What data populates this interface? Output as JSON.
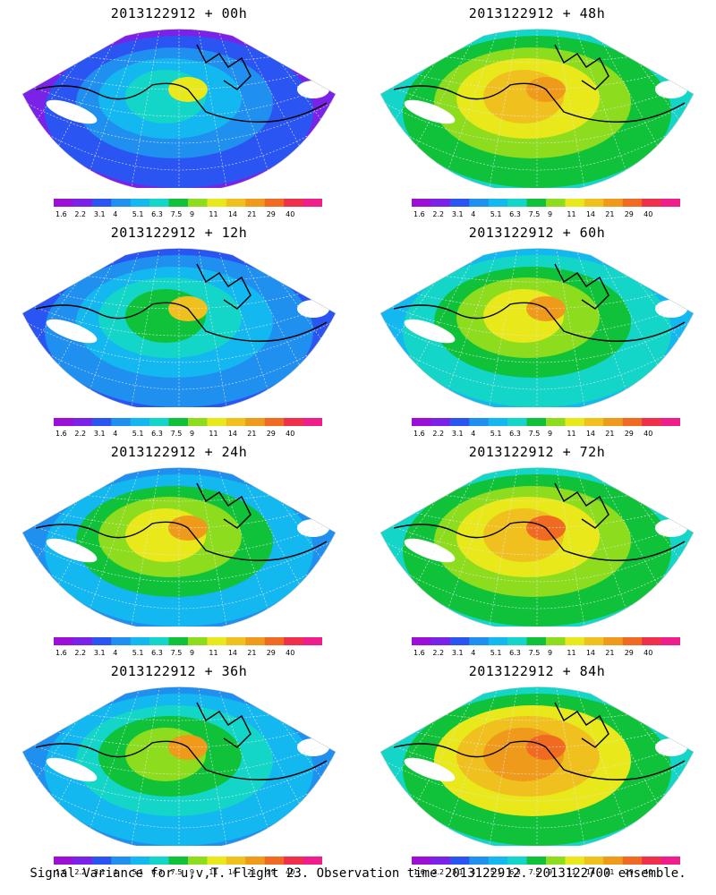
{
  "footer": "Signal Variance for u,v,T. Flight 23. Observation time 2013122912. 2013122700 ensemble.",
  "colorbar": {
    "labels": [
      "1.6",
      "2.2",
      "3.1",
      "4",
      "5.1",
      "6.3",
      "7.5",
      "9",
      "11",
      "14",
      "21",
      "29",
      "40"
    ],
    "colors": [
      "#9b0fd6",
      "#7a22e8",
      "#2a55f2",
      "#1f8ff0",
      "#13b8f0",
      "#14d6c8",
      "#10c23a",
      "#8ddc1e",
      "#e8e81a",
      "#f0c01e",
      "#f09a1c",
      "#f06a22",
      "#f0304a",
      "#f01e8a"
    ]
  },
  "panels": [
    {
      "title": "2013122912 + 00h"
    },
    {
      "title": "2013122912 + 48h"
    },
    {
      "title": "2013122912 + 12h"
    },
    {
      "title": "2013122912 + 60h"
    },
    {
      "title": "2013122912 + 24h"
    },
    {
      "title": "2013122912 + 72h"
    },
    {
      "title": "2013122912 + 36h"
    },
    {
      "title": "2013122912 + 84h"
    }
  ]
}
